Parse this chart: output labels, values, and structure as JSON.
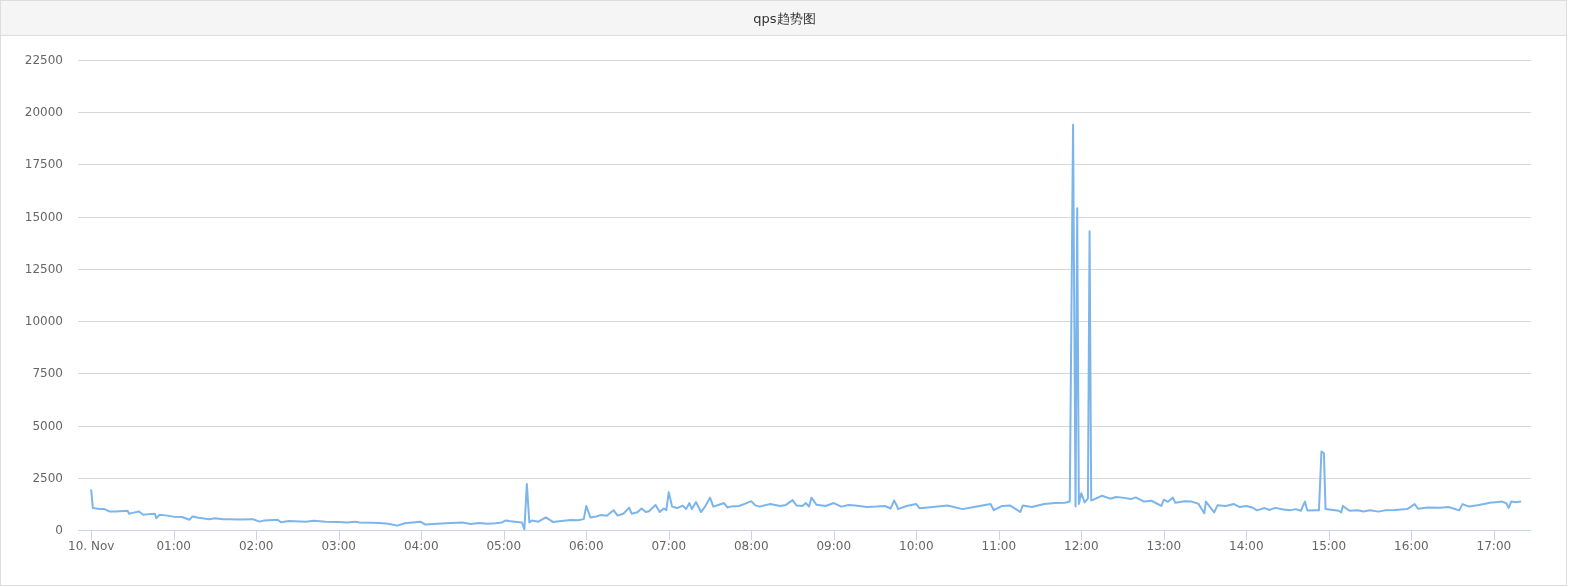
{
  "chart_data": {
    "type": "line",
    "title": "qps趋势图",
    "x": [
      0,
      0.02,
      0.1,
      0.16,
      0.22,
      0.3,
      0.44,
      0.46,
      0.5,
      0.58,
      0.63,
      0.7,
      0.77,
      0.79,
      0.83,
      0.9,
      1.0,
      1.1,
      1.19,
      1.23,
      1.3,
      1.43,
      1.5,
      1.6,
      1.67,
      1.8,
      1.96,
      2.04,
      2.1,
      2.26,
      2.3,
      2.4,
      2.6,
      2.7,
      2.84,
      3.0,
      3.1,
      3.2,
      3.25,
      3.4,
      3.5,
      3.6,
      3.71,
      3.8,
      3.99,
      4.05,
      4.2,
      4.3,
      4.5,
      4.6,
      4.7,
      4.8,
      4.9,
      4.98,
      5.02,
      5.22,
      5.25,
      5.28,
      5.31,
      5.34,
      5.42,
      5.51,
      5.6,
      5.7,
      5.81,
      5.9,
      5.97,
      6.0,
      6.05,
      6.12,
      6.18,
      6.25,
      6.33,
      6.38,
      6.45,
      6.52,
      6.55,
      6.62,
      6.67,
      6.72,
      6.76,
      6.84,
      6.89,
      6.94,
      6.97,
      7.0,
      7.04,
      7.1,
      7.17,
      7.21,
      7.25,
      7.28,
      7.33,
      7.36,
      7.39,
      7.44,
      7.5,
      7.54,
      7.6,
      7.67,
      7.71,
      7.75,
      7.85,
      7.92,
      8.0,
      8.05,
      8.1,
      8.23,
      8.35,
      8.42,
      8.5,
      8.55,
      8.62,
      8.66,
      8.7,
      8.73,
      8.79,
      8.9,
      9.0,
      9.09,
      9.18,
      9.26,
      9.4,
      9.52,
      9.62,
      9.69,
      9.73,
      9.76,
      9.78,
      9.88,
      10.0,
      10.04,
      10.2,
      10.38,
      10.56,
      10.7,
      10.9,
      10.94,
      11.04,
      11.14,
      11.26,
      11.29,
      11.4,
      11.55,
      11.68,
      11.8,
      11.86,
      11.9,
      11.93,
      11.95,
      11.97,
      12.0,
      12.04,
      12.08,
      12.1,
      12.12,
      12.25,
      12.35,
      12.42,
      12.5,
      12.6,
      12.66,
      12.76,
      12.85,
      12.97,
      13.0,
      13.05,
      13.11,
      13.14,
      13.25,
      13.34,
      13.42,
      13.49,
      13.51,
      13.61,
      13.65,
      13.75,
      13.85,
      13.92,
      14.0,
      14.07,
      14.13,
      14.22,
      14.28,
      14.35,
      14.45,
      14.53,
      14.6,
      14.66,
      14.71,
      14.74,
      14.85,
      14.88,
      14.91,
      14.94,
      14.96,
      15.05,
      15.12,
      15.15,
      15.17,
      15.25,
      15.35,
      15.42,
      15.5,
      15.6,
      15.68,
      15.8,
      15.95,
      16.04,
      16.08,
      16.2,
      16.35,
      16.45,
      16.58,
      16.62,
      16.7,
      16.8,
      16.88,
      16.95,
      17.05,
      17.1,
      17.15,
      17.18,
      17.21,
      17.27,
      17.32
    ],
    "series": [
      {
        "color": "#7cb5ec",
        "values": [
          1900,
          1050,
          1000,
          1000,
          890,
          880,
          920,
          780,
          820,
          890,
          730,
          760,
          780,
          570,
          730,
          700,
          640,
          620,
          490,
          650,
          590,
          520,
          560,
          520,
          520,
          500,
          520,
          400,
          460,
          490,
          370,
          430,
          400,
          440,
          400,
          380,
          360,
          400,
          360,
          350,
          330,
          300,
          210,
          320,
          400,
          260,
          300,
          320,
          360,
          290,
          330,
          300,
          320,
          360,
          450,
          360,
          30,
          2200,
          360,
          450,
          400,
          600,
          380,
          430,
          480,
          470,
          520,
          1150,
          600,
          650,
          720,
          680,
          950,
          690,
          780,
          1070,
          780,
          850,
          1030,
          860,
          900,
          1200,
          860,
          1030,
          950,
          1810,
          1120,
          1050,
          1170,
          1000,
          1290,
          1000,
          1340,
          1100,
          860,
          1120,
          1550,
          1120,
          1200,
          1290,
          1080,
          1120,
          1150,
          1250,
          1380,
          1180,
          1120,
          1240,
          1150,
          1200,
          1430,
          1170,
          1150,
          1290,
          1120,
          1550,
          1210,
          1150,
          1290,
          1120,
          1200,
          1170,
          1100,
          1120,
          1150,
          1030,
          1410,
          1200,
          1000,
          1150,
          1240,
          1040,
          1100,
          1170,
          1000,
          1100,
          1240,
          950,
          1150,
          1170,
          860,
          1170,
          1100,
          1240,
          1290,
          1300,
          1360,
          19400,
          1120,
          15400,
          1240,
          1760,
          1320,
          1500,
          14300,
          1410,
          1640,
          1500,
          1580,
          1550,
          1480,
          1560,
          1360,
          1400,
          1150,
          1450,
          1350,
          1550,
          1300,
          1380,
          1360,
          1250,
          800,
          1360,
          840,
          1180,
          1150,
          1240,
          1100,
          1150,
          1080,
          940,
          1050,
          960,
          1060,
          980,
          940,
          1000,
          920,
          1360,
          930,
          950,
          940,
          3760,
          3670,
          1010,
          960,
          920,
          840,
          1150,
          920,
          950,
          890,
          950,
          880,
          940,
          960,
          1000,
          1240,
          1020,
          1080,
          1060,
          1100,
          940,
          1240,
          1120,
          1180,
          1240,
          1300,
          1340,
          1360,
          1280,
          1060,
          1360,
          1330,
          1360
        ]
      }
    ],
    "xlim": [
      -0.16,
      17.45
    ],
    "xticks": [
      {
        "value": 0,
        "label": "10. Nov"
      },
      {
        "value": 1,
        "label": "01:00"
      },
      {
        "value": 2,
        "label": "02:00"
      },
      {
        "value": 3,
        "label": "03:00"
      },
      {
        "value": 4,
        "label": "04:00"
      },
      {
        "value": 5,
        "label": "05:00"
      },
      {
        "value": 6,
        "label": "06:00"
      },
      {
        "value": 7,
        "label": "07:00"
      },
      {
        "value": 8,
        "label": "08:00"
      },
      {
        "value": 9,
        "label": "09:00"
      },
      {
        "value": 10,
        "label": "10:00"
      },
      {
        "value": 11,
        "label": "11:00"
      },
      {
        "value": 12,
        "label": "12:00"
      },
      {
        "value": 13,
        "label": "13:00"
      },
      {
        "value": 14,
        "label": "14:00"
      },
      {
        "value": 15,
        "label": "15:00"
      },
      {
        "value": 16,
        "label": "16:00"
      },
      {
        "value": 17,
        "label": "17:00"
      }
    ],
    "ylim": [
      0,
      22500
    ],
    "yticks": [
      0,
      2500,
      5000,
      7500,
      10000,
      12500,
      15000,
      17500,
      20000,
      22500
    ],
    "grid": "y"
  }
}
